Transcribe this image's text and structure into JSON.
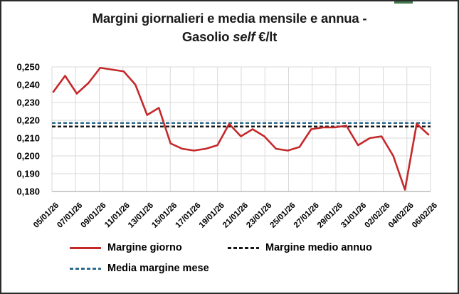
{
  "title": {
    "line1": "Margini giornalieri e media mensile e annua -",
    "line2_pre": "Gasolio ",
    "line2_italic": "self",
    "line2_post": " €/lt"
  },
  "legend": {
    "items": [
      {
        "id": "margine-giorno",
        "label": "Margine giorno",
        "color": "#c4292a",
        "dash": "solid"
      },
      {
        "id": "margine-medio-annuo",
        "label": "Margine medio annuo",
        "color": "#161616",
        "dash": "dashed"
      },
      {
        "id": "media-margine-mese",
        "label": "Media margine mese",
        "color": "#2e6d8f",
        "dash": "dashed"
      }
    ]
  },
  "chart_data": {
    "type": "line",
    "title": "Margini giornalieri e media mensile e annua - Gasolio self €/lt",
    "xlabel": "",
    "ylabel": "",
    "ylim": [
      0.18,
      0.25
    ],
    "ytick_step": 0.01,
    "y_tick_labels": [
      "0,250",
      "0,240",
      "0,230",
      "0,220",
      "0,210",
      "0,200",
      "0,190",
      "0,180"
    ],
    "grid": true,
    "legend_position": "bottom",
    "decimal_separator": "comma",
    "x": [
      "05/01/26",
      "06/01/26",
      "07/01/26",
      "08/01/26",
      "09/01/26",
      "10/01/26",
      "11/01/26",
      "12/01/26",
      "13/01/26",
      "14/01/26",
      "15/01/26",
      "16/01/26",
      "17/01/26",
      "18/01/26",
      "19/01/26",
      "20/01/26",
      "21/01/26",
      "22/01/26",
      "23/01/26",
      "24/01/26",
      "25/01/26",
      "26/01/26",
      "27/01/26",
      "28/01/26",
      "29/01/26",
      "30/01/26",
      "31/01/26",
      "01/02/26",
      "02/02/26",
      "03/02/26",
      "04/02/26",
      "05/02/26",
      "06/02/26"
    ],
    "x_tick_labels": [
      "05/01/26",
      "07/01/26",
      "09/01/26",
      "11/01/26",
      "13/01/26",
      "15/01/26",
      "17/01/26",
      "19/01/26",
      "21/01/26",
      "23/01/26",
      "25/01/26",
      "27/01/26",
      "29/01/26",
      "31/01/26",
      "02/02/26",
      "04/02/26",
      "06/02/26"
    ],
    "series": [
      {
        "name": "Margine giorno",
        "color": "#c4292a",
        "style": "solid",
        "values": [
          0.236,
          0.245,
          0.235,
          0.241,
          0.2495,
          0.2485,
          0.2475,
          0.24,
          0.223,
          0.227,
          0.207,
          0.204,
          0.203,
          0.204,
          0.206,
          0.218,
          0.211,
          0.215,
          0.211,
          0.204,
          0.203,
          0.205,
          0.215,
          0.216,
          0.216,
          0.217,
          0.206,
          0.21,
          0.211,
          0.2,
          0.181,
          0.218,
          0.212
        ]
      },
      {
        "name": "Margine medio annuo",
        "color": "#161616",
        "style": "dashed",
        "value": 0.2165
      },
      {
        "name": "Media margine mese",
        "color": "#2e6d8f",
        "style": "dashed",
        "value": 0.2185
      }
    ]
  },
  "colors": {
    "background": "#ffffff",
    "border": "#2b2b2b",
    "grid": "#d9d9d9",
    "axis": "#aeaeae",
    "tick_text": "#000000",
    "title_text": "#1a1a1a",
    "artifact_green": "#41794a"
  }
}
